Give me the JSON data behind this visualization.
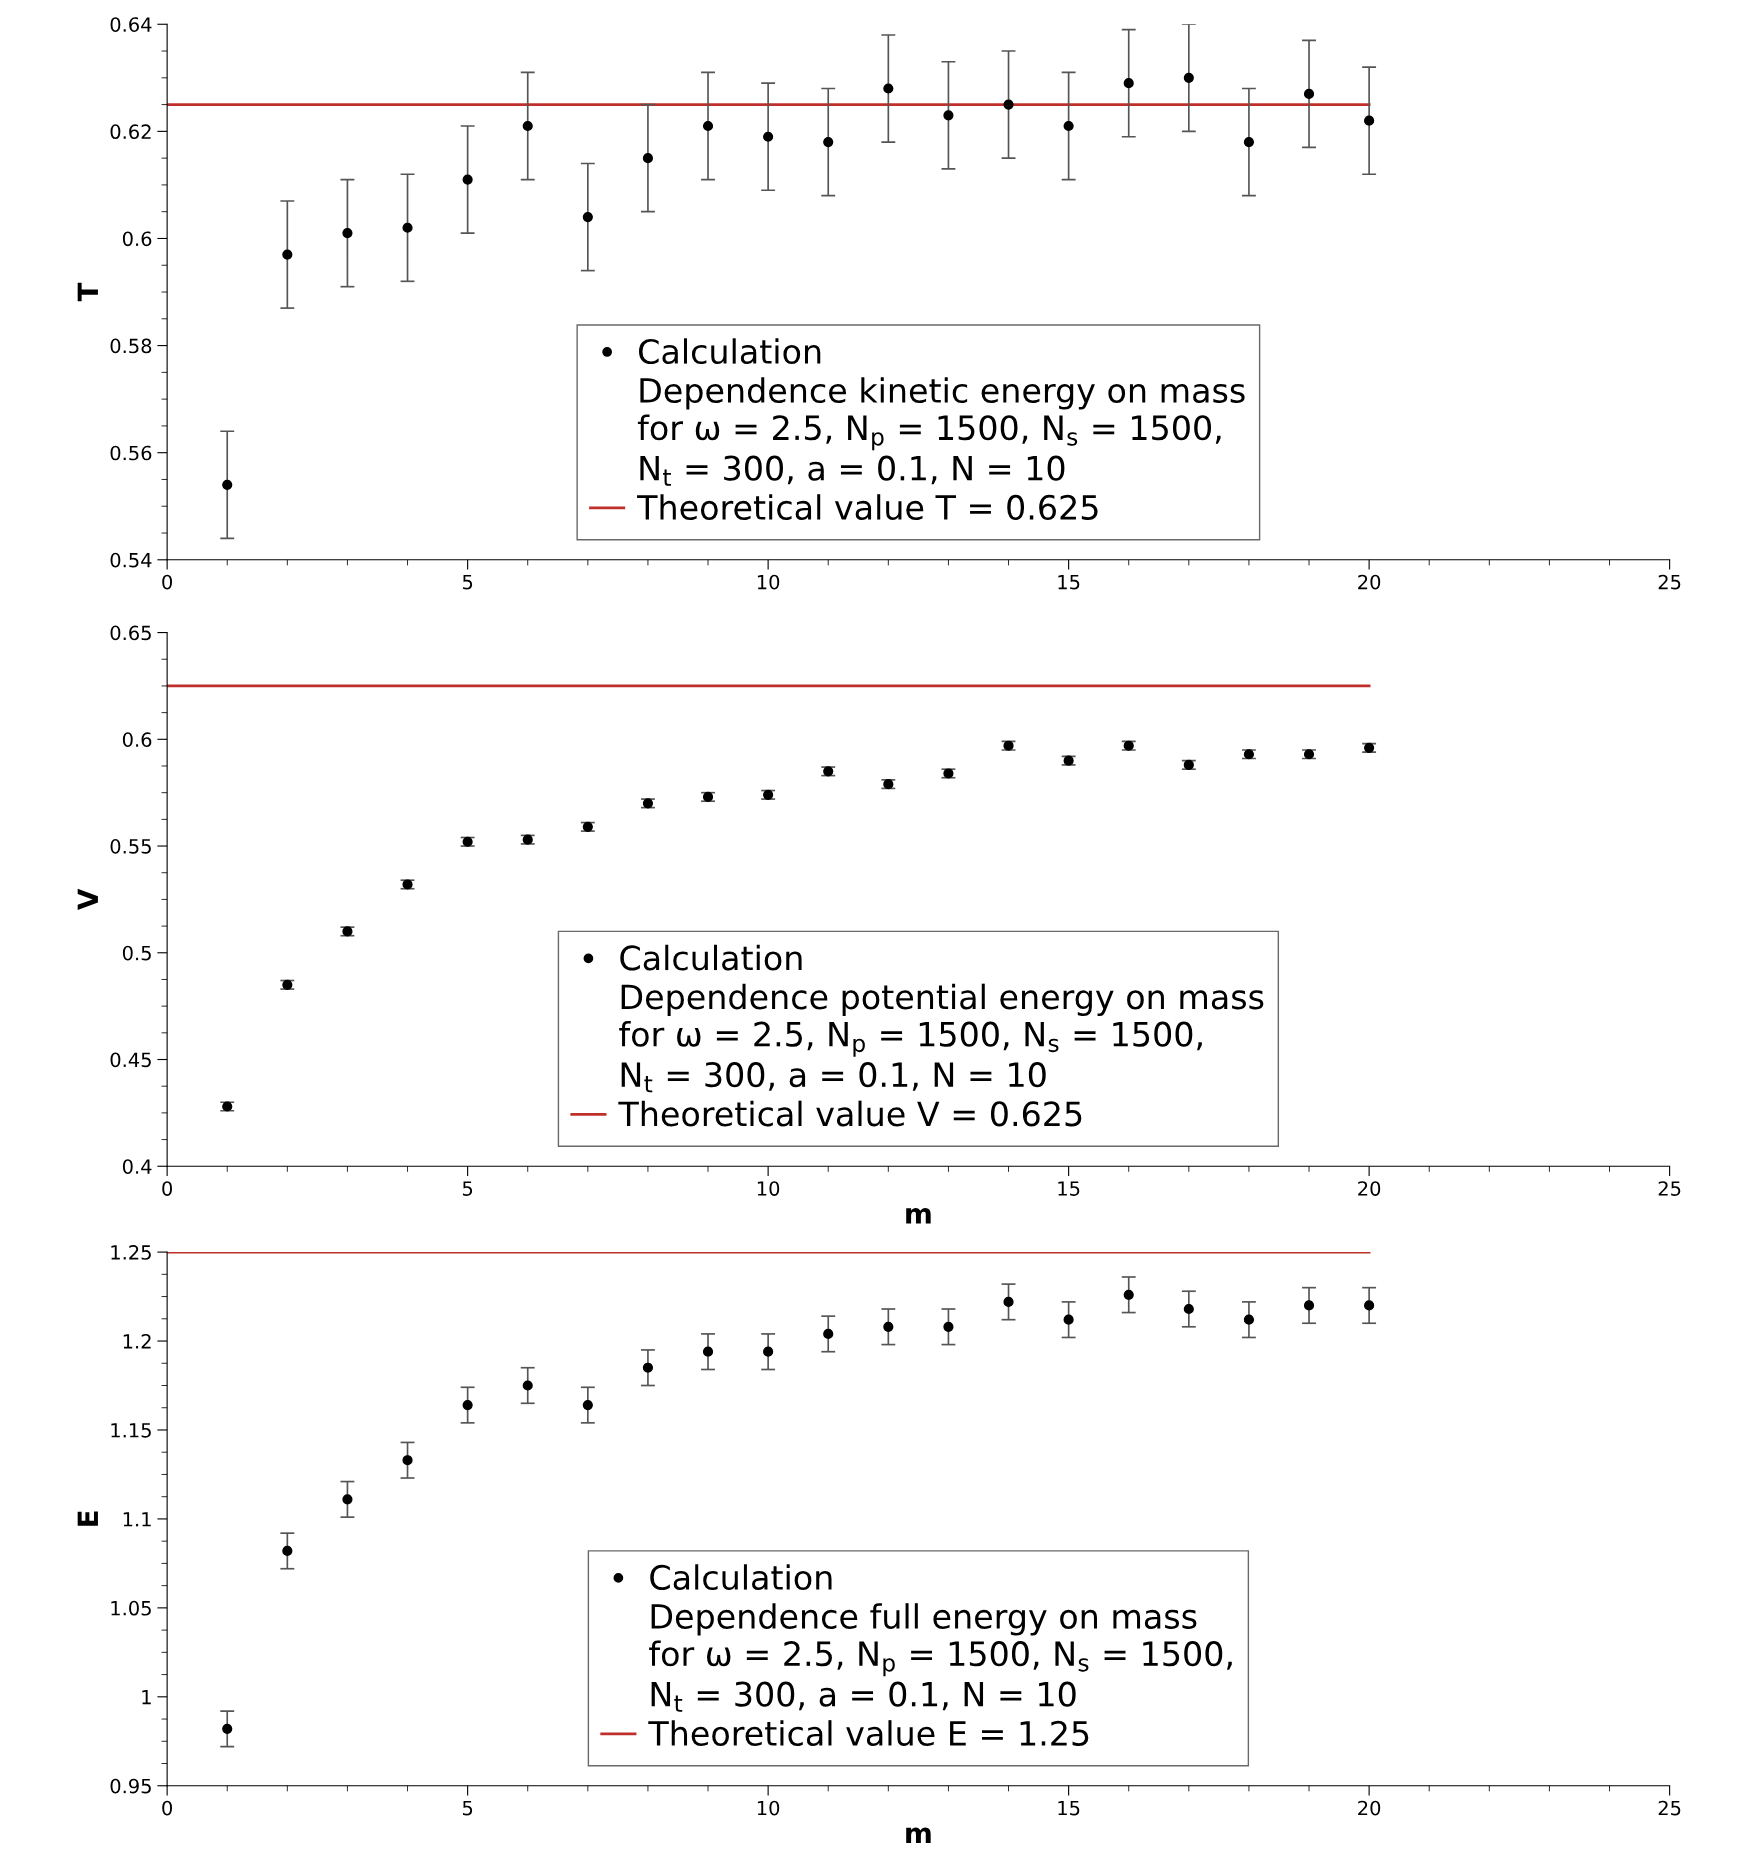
{
  "chart_data": [
    {
      "type": "scatter",
      "ylabel": "T",
      "xlim": [
        0,
        25
      ],
      "xticks": [
        0,
        5,
        10,
        15,
        20,
        25
      ],
      "ylim": [
        0.54,
        0.64
      ],
      "yticks": [
        0.54,
        0.56,
        0.58,
        0.6,
        0.62,
        0.64
      ],
      "grid": false,
      "legend": "lower center",
      "annotations": [
        "Dependence kinetic energy on mass\nfor ω = 2.5, N$_{p}$ = 1500, N$_{s}$ = 1500,\nN$_{t}$ = 300, a = 0.1, N = 10"
      ],
      "series": [
        {
          "name": "Calculation",
          "marker": "circle",
          "color": "#000000",
          "x": [
            1,
            2,
            3,
            4,
            5,
            6,
            7,
            8,
            9,
            10,
            11,
            12,
            13,
            14,
            15,
            16,
            17,
            18,
            19,
            20
          ],
          "values": [
            0.554,
            0.597,
            0.601,
            0.602,
            0.611,
            0.621,
            0.604,
            0.615,
            0.621,
            0.619,
            0.618,
            0.628,
            0.623,
            0.625,
            0.621,
            0.629,
            0.63,
            0.618,
            0.627,
            0.622
          ],
          "errors": [
            0.01,
            0.01,
            0.01,
            0.01,
            0.01,
            0.01,
            0.01,
            0.01,
            0.01,
            0.01,
            0.01,
            0.01,
            0.01,
            0.01,
            0.01,
            0.01,
            0.01,
            0.01,
            0.01,
            0.01
          ]
        },
        {
          "name": "Theoretical value T = 0.625",
          "type": "line",
          "marker": "none",
          "line_style": "solid",
          "color": "#c0302a",
          "x": [
            0,
            20
          ],
          "values": [
            0.625,
            0.625
          ]
        }
      ]
    },
    {
      "type": "scatter",
      "xlabel": "m",
      "ylabel": "V",
      "xlim": [
        0,
        25
      ],
      "xticks": [
        0,
        5,
        10,
        15,
        20,
        25
      ],
      "ylim": [
        0.4,
        0.65
      ],
      "yticks": [
        0.4,
        0.45,
        0.5,
        0.55,
        0.6,
        0.65
      ],
      "grid": false,
      "legend": "lower center",
      "annotations": [
        "Dependence potential energy on mass\nfor ω = 2.5, N$_{p}$ = 1500, N$_{s}$ = 1500,\nN$_{t}$ = 300, a = 0.1, N = 10"
      ],
      "series": [
        {
          "name": "Calculation",
          "marker": "circle",
          "color": "#000000",
          "x": [
            1,
            2,
            3,
            4,
            5,
            6,
            7,
            8,
            9,
            10,
            11,
            12,
            13,
            14,
            15,
            16,
            17,
            18,
            19,
            20
          ],
          "values": [
            0.428,
            0.485,
            0.51,
            0.532,
            0.552,
            0.553,
            0.559,
            0.57,
            0.573,
            0.574,
            0.585,
            0.579,
            0.584,
            0.597,
            0.59,
            0.597,
            0.588,
            0.593,
            0.593,
            0.596
          ],
          "errors": [
            0.002,
            0.002,
            0.002,
            0.002,
            0.002,
            0.002,
            0.002,
            0.002,
            0.002,
            0.002,
            0.002,
            0.002,
            0.002,
            0.002,
            0.002,
            0.002,
            0.002,
            0.002,
            0.002,
            0.002
          ]
        },
        {
          "name": "Theoretical value V = 0.625",
          "type": "line",
          "marker": "none",
          "line_style": "solid",
          "color": "#c0302a",
          "x": [
            0,
            20
          ],
          "values": [
            0.625,
            0.625
          ]
        }
      ]
    },
    {
      "type": "scatter",
      "xlabel": "m",
      "ylabel": "E",
      "xlim": [
        0,
        25
      ],
      "xticks": [
        0,
        5,
        10,
        15,
        20,
        25
      ],
      "ylim": [
        0.95,
        1.25
      ],
      "yticks": [
        0.95,
        1,
        1.05,
        1.1,
        1.15,
        1.2,
        1.25
      ],
      "grid": false,
      "legend": "lower center",
      "annotations": [
        "Dependence full energy on mass\nfor ω = 2.5, N$_{p}$ = 1500, N$_{s}$ = 1500,\nN$_{t}$ = 300, a = 0.1, N = 10"
      ],
      "series": [
        {
          "name": "Calculation",
          "marker": "circle",
          "color": "#000000",
          "x": [
            1,
            2,
            3,
            4,
            5,
            6,
            7,
            8,
            9,
            10,
            11,
            12,
            13,
            14,
            15,
            16,
            17,
            18,
            19,
            20
          ],
          "values": [
            0.982,
            1.082,
            1.111,
            1.133,
            1.164,
            1.175,
            1.164,
            1.185,
            1.194,
            1.194,
            1.204,
            1.208,
            1.208,
            1.222,
            1.212,
            1.226,
            1.218,
            1.212,
            1.22,
            1.22
          ],
          "errors": [
            0.01,
            0.01,
            0.01,
            0.01,
            0.01,
            0.01,
            0.01,
            0.01,
            0.01,
            0.01,
            0.01,
            0.01,
            0.01,
            0.01,
            0.01,
            0.01,
            0.01,
            0.01,
            0.01,
            0.01
          ]
        },
        {
          "name": "Theoretical value E = 1.25",
          "type": "line",
          "marker": "none",
          "line_style": "solid",
          "color": "#c0302a",
          "x": [
            0,
            20
          ],
          "values": [
            1.25,
            1.25
          ]
        }
      ]
    }
  ]
}
